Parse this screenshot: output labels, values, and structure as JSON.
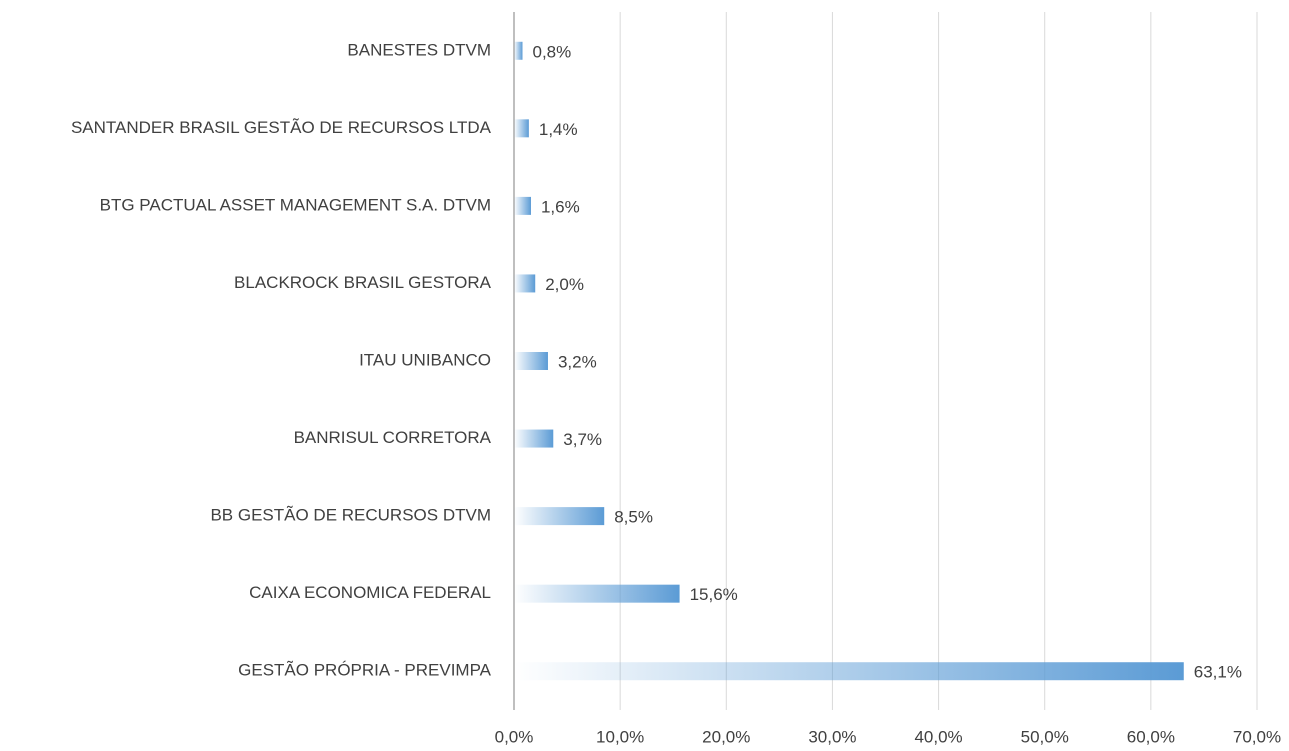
{
  "chart_data": {
    "type": "bar",
    "orientation": "horizontal",
    "categories": [
      "BANESTES DTVM",
      "SANTANDER BRASIL GESTÃO DE RECURSOS LTDA",
      "BTG PACTUAL ASSET MANAGEMENT S.A. DTVM",
      "BLACKROCK BRASIL GESTORA",
      "ITAU UNIBANCO",
      "BANRISUL CORRETORA",
      "BB GESTÃO DE RECURSOS DTVM",
      "CAIXA ECONOMICA FEDERAL",
      "GESTÃO PRÓPRIA - PREVIMPA"
    ],
    "values": [
      0.8,
      1.4,
      1.6,
      2.0,
      3.2,
      3.7,
      8.5,
      15.6,
      63.1
    ],
    "value_labels": [
      "0,8%",
      "1,4%",
      "1,6%",
      "2,0%",
      "3,2%",
      "3,7%",
      "8,5%",
      "15,6%",
      "63,1%"
    ],
    "color": "#5b9bd5",
    "xlim": [
      0,
      70
    ],
    "xticks": [
      {
        "value": 0,
        "label": "0,0%"
      },
      {
        "value": 10,
        "label": "10,0%"
      },
      {
        "value": 20,
        "label": "20,0%"
      },
      {
        "value": 30,
        "label": "30,0%"
      },
      {
        "value": 40,
        "label": "40,0%"
      },
      {
        "value": 50,
        "label": "50,0%"
      },
      {
        "value": 60,
        "label": "60,0%"
      },
      {
        "value": 70,
        "label": "70,0%"
      }
    ],
    "grid": true
  }
}
